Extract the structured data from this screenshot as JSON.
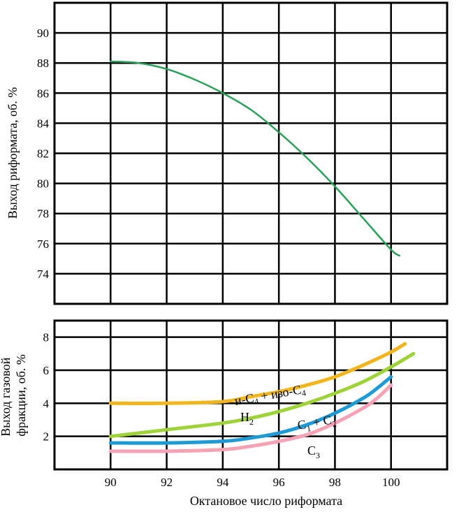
{
  "chart_data": [
    {
      "type": "line",
      "ylabel": "Выход риформата, об. %",
      "xlim": [
        88,
        102
      ],
      "ylim": [
        72,
        92
      ],
      "yticks": [
        74,
        76,
        78,
        80,
        82,
        84,
        86,
        88,
        90
      ],
      "grid": true,
      "series": [
        {
          "name": "Выход риформата",
          "color": "#2aa05a",
          "x": [
            90,
            91,
            92,
            93,
            94,
            95,
            96,
            97,
            98,
            99,
            100,
            100.3
          ],
          "y": [
            88.1,
            88.0,
            87.6,
            86.9,
            86.0,
            84.9,
            83.4,
            81.7,
            79.8,
            77.7,
            75.6,
            75.2
          ]
        }
      ]
    },
    {
      "type": "line",
      "ylabel": "Выход газовой фракции, об. %",
      "xlabel": "Октановое число риформата",
      "xlim": [
        88,
        102
      ],
      "ylim": [
        0,
        9
      ],
      "xticks": [
        90,
        92,
        94,
        96,
        98,
        100
      ],
      "yticks": [
        2,
        4,
        6,
        8
      ],
      "grid": true,
      "series": [
        {
          "name": "н-C4 + изо-C4",
          "color": "#f2b51d",
          "x": [
            90,
            92,
            94,
            95,
            96,
            97,
            98,
            99,
            100,
            100.5
          ],
          "y": [
            4.0,
            4.0,
            4.1,
            4.4,
            4.7,
            5.1,
            5.6,
            6.3,
            7.1,
            7.6
          ]
        },
        {
          "name": "H2",
          "color": "#9ed43a",
          "x": [
            90,
            92,
            94,
            95,
            96,
            97,
            98,
            99,
            100,
            100.8
          ],
          "y": [
            2.0,
            2.4,
            2.8,
            3.1,
            3.5,
            4.0,
            4.6,
            5.3,
            6.2,
            7.0
          ]
        },
        {
          "name": "C1 + C2",
          "color": "#1e9ad6",
          "x": [
            90,
            92,
            94,
            95,
            96,
            97,
            98,
            99,
            99.5,
            100
          ],
          "y": [
            1.6,
            1.6,
            1.7,
            1.9,
            2.2,
            2.7,
            3.4,
            4.3,
            4.9,
            5.6
          ]
        },
        {
          "name": "C3",
          "color": "#f5a2b5",
          "x": [
            90,
            92,
            94,
            95,
            96,
            97,
            98,
            99,
            99.5,
            100
          ],
          "y": [
            1.1,
            1.1,
            1.2,
            1.4,
            1.7,
            2.1,
            2.8,
            3.7,
            4.3,
            5.1
          ]
        }
      ]
    }
  ],
  "annotations": {
    "butanes_main": "н-C",
    "butanes_sub1": "4",
    "butanes_mid": " + изо-C",
    "butanes_sub2": "4",
    "h2_main": "H",
    "h2_sub": "2",
    "c1c2_main1": "C",
    "c1c2_sub1": "1",
    "c1c2_mid": " + C",
    "c1c2_sub2": "2",
    "c3_main": "C",
    "c3_sub": "3"
  }
}
